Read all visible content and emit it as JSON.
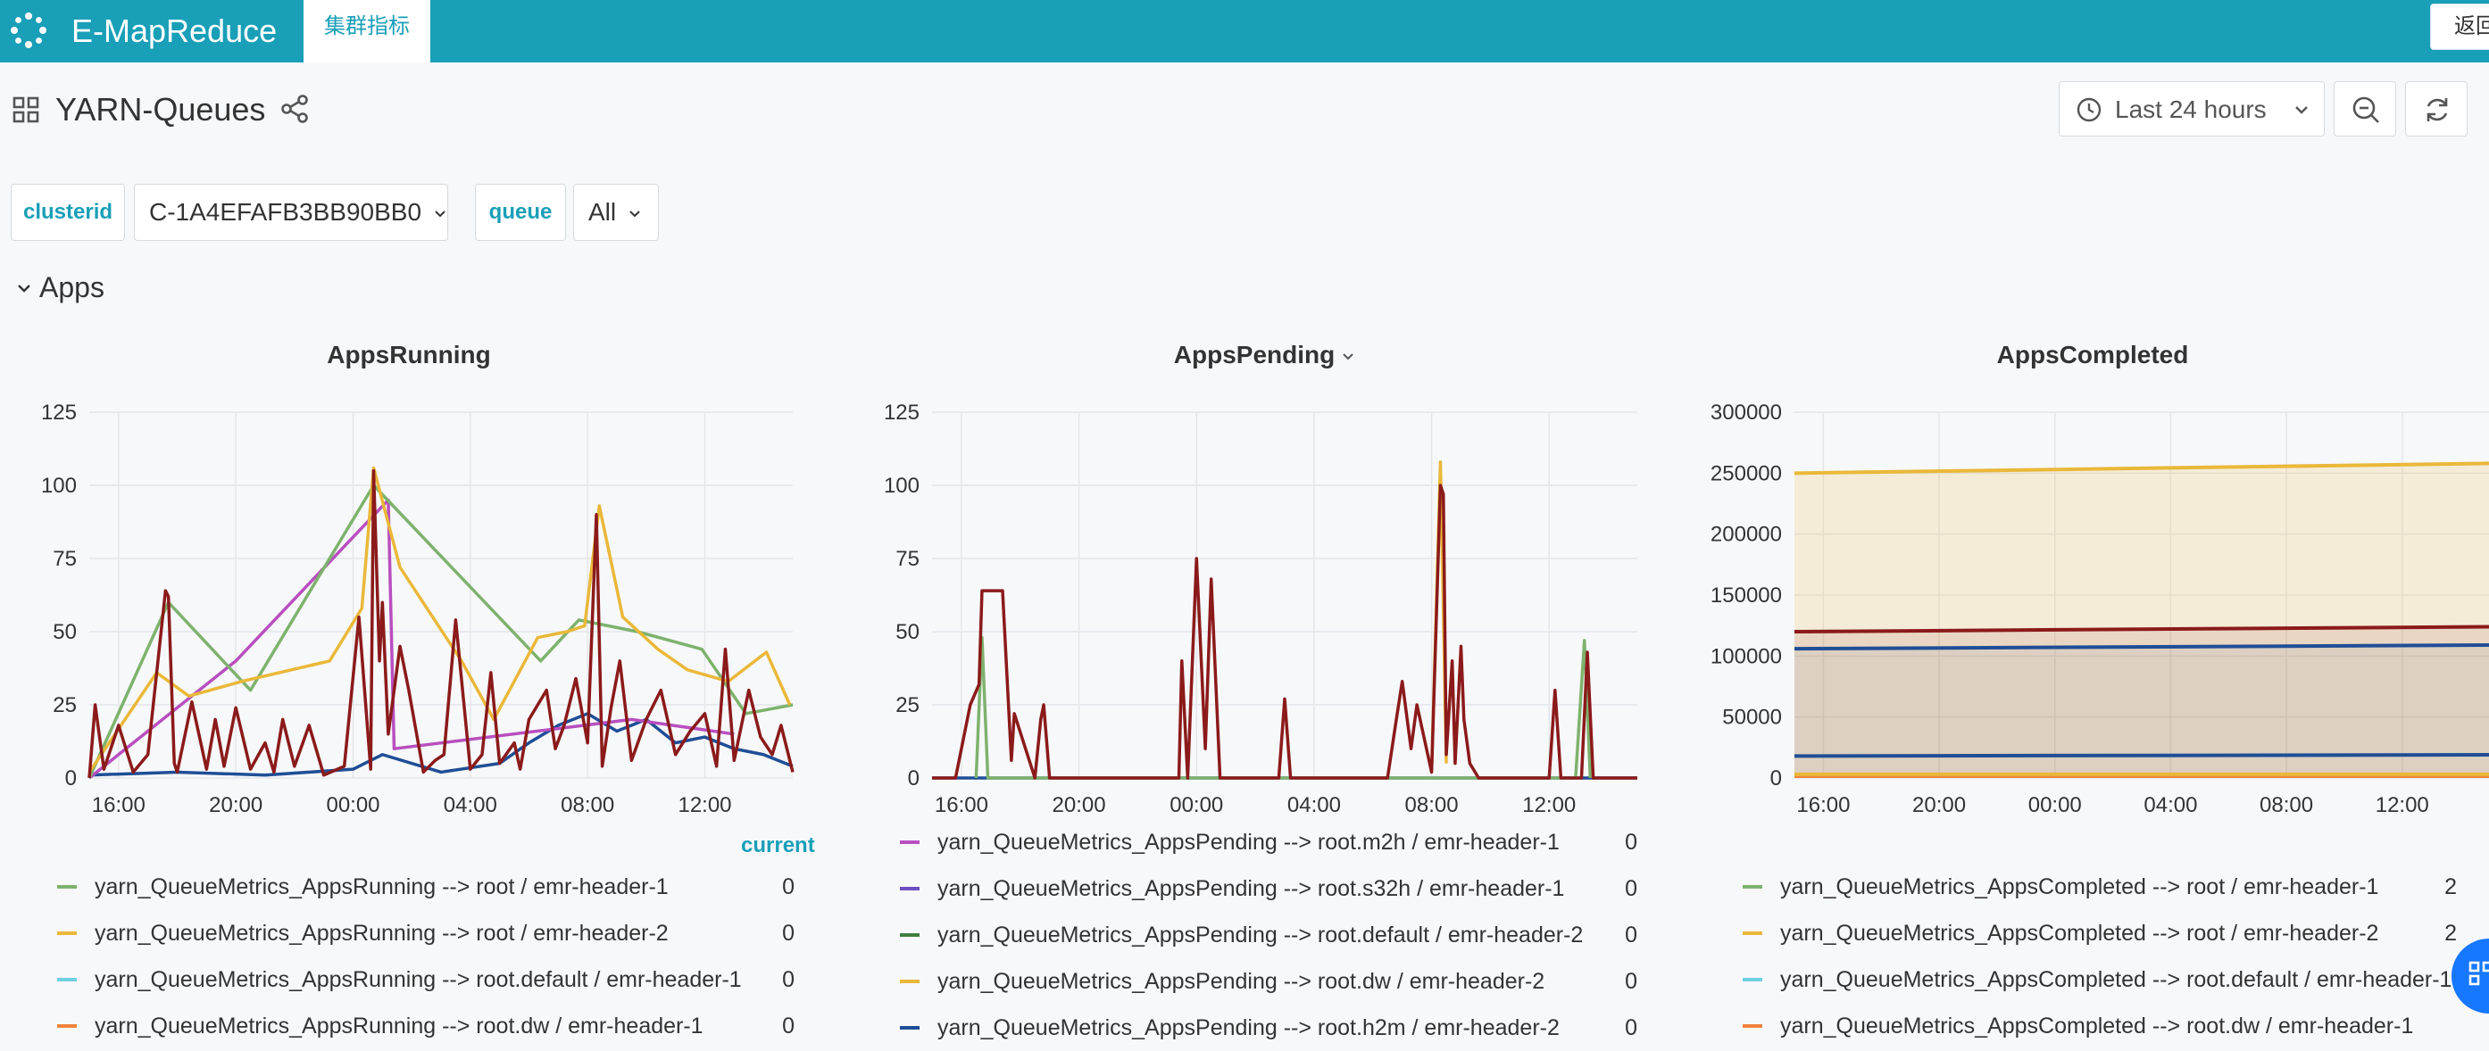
{
  "app": {
    "brand": "E-MapReduce",
    "tab": "集群指标",
    "back": "返回"
  },
  "dashboard": {
    "title": "YARN-Queues",
    "time_range": "Last 24 hours"
  },
  "variables": [
    {
      "label": "clusterid",
      "value": "C-1A4EFAFB3BB90BB0"
    },
    {
      "label": "queue",
      "value": "All"
    }
  ],
  "section": {
    "title": "Apps"
  },
  "legend_header": "current",
  "colors": {
    "accent": "#1a9fb8",
    "green": "#7eb26d",
    "yellow": "#eab839",
    "cyan": "#6ed0e0",
    "orange": "#ef843c",
    "red": "#8b1a1a",
    "blue": "#1f4e96",
    "purple": "#b84fbf",
    "violet": "#6b4fbf",
    "darkgreen": "#3f7f3f"
  },
  "panels": [
    {
      "title": "AppsRunning",
      "legend": [
        {
          "name": "yarn_QueueMetrics_AppsRunning --> root / emr-header-1",
          "value": "0",
          "color": "#7eb26d"
        },
        {
          "name": "yarn_QueueMetrics_AppsRunning --> root / emr-header-2",
          "value": "0",
          "color": "#eab839"
        },
        {
          "name": "yarn_QueueMetrics_AppsRunning --> root.default / emr-header-1",
          "value": "0",
          "color": "#6ed0e0"
        },
        {
          "name": "yarn_QueueMetrics_AppsRunning --> root.dw / emr-header-1",
          "value": "0",
          "color": "#ef843c"
        }
      ]
    },
    {
      "title": "AppsPending",
      "legend": [
        {
          "name": "yarn_QueueMetrics_AppsPending --> root.m2h / emr-header-1",
          "value": "0",
          "color": "#b84fbf"
        },
        {
          "name": "yarn_QueueMetrics_AppsPending --> root.s32h / emr-header-1",
          "value": "0",
          "color": "#6b4fbf"
        },
        {
          "name": "yarn_QueueMetrics_AppsPending --> root.default / emr-header-2",
          "value": "0",
          "color": "#3f7f3f"
        },
        {
          "name": "yarn_QueueMetrics_AppsPending --> root.dw / emr-header-2",
          "value": "0",
          "color": "#eab839"
        },
        {
          "name": "yarn_QueueMetrics_AppsPending --> root.h2m / emr-header-2",
          "value": "0",
          "color": "#1f4e96"
        }
      ]
    },
    {
      "title": "AppsCompleted",
      "legend": [
        {
          "name": "yarn_QueueMetrics_AppsCompleted --> root / emr-header-1",
          "value": "2",
          "color": "#7eb26d"
        },
        {
          "name": "yarn_QueueMetrics_AppsCompleted --> root / emr-header-2",
          "value": "2",
          "color": "#eab839"
        },
        {
          "name": "yarn_QueueMetrics_AppsCompleted --> root.default / emr-header-1",
          "value": "",
          "color": "#6ed0e0"
        },
        {
          "name": "yarn_QueueMetrics_AppsCompleted --> root.dw / emr-header-1",
          "value": "",
          "color": "#ef843c"
        }
      ]
    }
  ],
  "chart_data": [
    {
      "type": "line",
      "title": "AppsRunning",
      "x_ticks": [
        "16:00",
        "20:00",
        "00:00",
        "04:00",
        "08:00",
        "12:00"
      ],
      "y_ticks": [
        "0",
        "25",
        "50",
        "75",
        "100",
        "125"
      ],
      "ylim": [
        0,
        125
      ],
      "x_hours": [
        15,
        39
      ],
      "series": [
        {
          "color": "#8b1a1a",
          "x": [
            15.0,
            15.2,
            15.5,
            16.0,
            16.5,
            17.0,
            17.6,
            17.7,
            17.9,
            18.0,
            18.5,
            19.0,
            19.3,
            19.6,
            20.0,
            20.5,
            21.0,
            21.3,
            21.6,
            22.0,
            22.5,
            23.0,
            23.7,
            24.2,
            24.6,
            24.7,
            24.9,
            25.0,
            25.2,
            25.6,
            25.9,
            26.4,
            26.8,
            27.1,
            27.5,
            28.0,
            28.4,
            28.7,
            29.0,
            29.5,
            29.7,
            30.0,
            30.6,
            30.9,
            31.2,
            31.6,
            32.0,
            32.3,
            32.5,
            32.8,
            33.1,
            33.5,
            34.0,
            34.5,
            35.0,
            35.5,
            36.0,
            36.4,
            36.7,
            37.0,
            37.5,
            37.9,
            38.3,
            38.6,
            39.0
          ],
          "y": [
            0,
            25,
            3,
            18,
            2,
            8,
            64,
            62,
            5,
            2,
            26,
            3,
            20,
            4,
            24,
            3,
            12,
            2,
            20,
            4,
            18,
            1,
            4,
            55,
            3,
            105,
            40,
            60,
            15,
            45,
            30,
            2,
            6,
            8,
            54,
            3,
            8,
            36,
            5,
            12,
            3,
            20,
            30,
            10,
            18,
            34,
            12,
            90,
            4,
            24,
            40,
            6,
            20,
            30,
            8,
            16,
            22,
            4,
            44,
            6,
            30,
            14,
            8,
            18,
            2
          ]
        },
        {
          "color": "#eab839",
          "x": [
            15.0,
            17.3,
            18.4,
            20.2,
            23.2,
            24.3,
            24.7,
            25.6,
            27.7,
            28.8,
            30.3,
            31.3,
            31.9,
            32.4,
            33.2,
            34.4,
            35.4,
            36.8,
            38.1,
            38.9
          ],
          "y": [
            2,
            36,
            28,
            33,
            40,
            58,
            106,
            72,
            40,
            20,
            48,
            50,
            52,
            93,
            55,
            44,
            37,
            33,
            43,
            25
          ]
        },
        {
          "color": "#7eb26d",
          "x": [
            15.0,
            17.7,
            20.5,
            24.7,
            30.4,
            31.7,
            33.7,
            35.9,
            37.4,
            39.0
          ],
          "y": [
            0,
            60,
            30,
            100,
            40,
            54,
            50,
            44,
            22,
            25
          ]
        },
        {
          "color": "#b84fbf",
          "x": [
            15.0,
            20.0,
            25.2,
            25.4,
            33.5,
            37.0
          ],
          "y": [
            0,
            40,
            95,
            10,
            20,
            15
          ]
        },
        {
          "color": "#1f4e96",
          "x": [
            15.0,
            18.0,
            21.0,
            24.0,
            25.0,
            27.0,
            29.0,
            30.0,
            31.0,
            32.0,
            33.0,
            34.0,
            35.0,
            36.0,
            37.0,
            38.0,
            39.0
          ],
          "y": [
            1,
            2,
            1,
            3,
            8,
            2,
            5,
            12,
            18,
            22,
            16,
            20,
            12,
            14,
            10,
            8,
            4
          ]
        }
      ]
    },
    {
      "type": "line",
      "title": "AppsPending",
      "x_ticks": [
        "16:00",
        "20:00",
        "00:00",
        "04:00",
        "08:00",
        "12:00"
      ],
      "y_ticks": [
        "0",
        "25",
        "50",
        "75",
        "100",
        "125"
      ],
      "ylim": [
        0,
        125
      ],
      "x_hours": [
        15,
        39
      ],
      "series": [
        {
          "color": "#8b1a1a",
          "x": [
            15.0,
            15.8,
            16.3,
            16.6,
            16.7,
            17.2,
            17.4,
            17.7,
            17.8,
            18.5,
            18.7,
            18.8,
            19.0,
            19.2,
            23.4,
            23.5,
            23.7,
            24.0,
            24.3,
            24.5,
            24.8,
            25.0,
            25.3,
            25.5,
            26.8,
            27.0,
            27.2,
            29.0,
            30.2,
            30.5,
            30.8,
            31.0,
            31.3,
            31.5,
            32.0,
            32.3,
            32.4,
            32.5,
            32.7,
            32.8,
            33.0,
            33.1,
            33.3,
            33.6,
            33.9,
            36.0,
            36.2,
            36.4,
            37.1,
            37.3,
            37.5,
            39.0
          ],
          "y": [
            0,
            0,
            25,
            32,
            64,
            64,
            64,
            6,
            22,
            0,
            20,
            25,
            0,
            0,
            0,
            40,
            0,
            75,
            10,
            68,
            0,
            0,
            0,
            0,
            0,
            27,
            0,
            0,
            0,
            0,
            20,
            33,
            10,
            25,
            2,
            100,
            97,
            8,
            40,
            5,
            45,
            20,
            5,
            0,
            0,
            0,
            30,
            0,
            0,
            43,
            0,
            0
          ]
        },
        {
          "color": "#eab839",
          "x": [
            32.0,
            32.3,
            32.5
          ],
          "y": [
            2,
            108,
            5
          ]
        },
        {
          "color": "#7eb26d",
          "x": [
            16.5,
            16.7,
            16.9,
            36.9,
            37.2,
            37.4
          ],
          "y": [
            0,
            48,
            0,
            0,
            47,
            0
          ]
        },
        {
          "color": "#1f4e96",
          "x": [
            15.0,
            39.0
          ],
          "y": [
            0,
            0
          ]
        }
      ]
    },
    {
      "type": "area",
      "title": "AppsCompleted",
      "x_ticks": [
        "16:00",
        "20:00",
        "00:00",
        "04:00",
        "08:00",
        "12:00"
      ],
      "y_ticks": [
        "0",
        "50000",
        "100000",
        "150000",
        "200000",
        "250000",
        "300000"
      ],
      "ylim": [
        0,
        300000
      ],
      "x_hours": [
        15,
        39
      ],
      "series": [
        {
          "color": "#eab839",
          "x": [
            15,
            39
          ],
          "y": [
            250000,
            258000
          ]
        },
        {
          "color": "#8b1a1a",
          "x": [
            15,
            39
          ],
          "y": [
            120000,
            124000
          ]
        },
        {
          "color": "#1f4e96",
          "x": [
            15,
            39
          ],
          "y": [
            106000,
            109000
          ]
        },
        {
          "color": "#1f4e96",
          "x": [
            15,
            39
          ],
          "y": [
            18000,
            19000
          ]
        },
        {
          "color": "#eab839",
          "x": [
            15,
            39
          ],
          "y": [
            3000,
            3000
          ]
        },
        {
          "color": "#ef843c",
          "x": [
            15,
            39
          ],
          "y": [
            1500,
            1500
          ]
        }
      ]
    }
  ]
}
